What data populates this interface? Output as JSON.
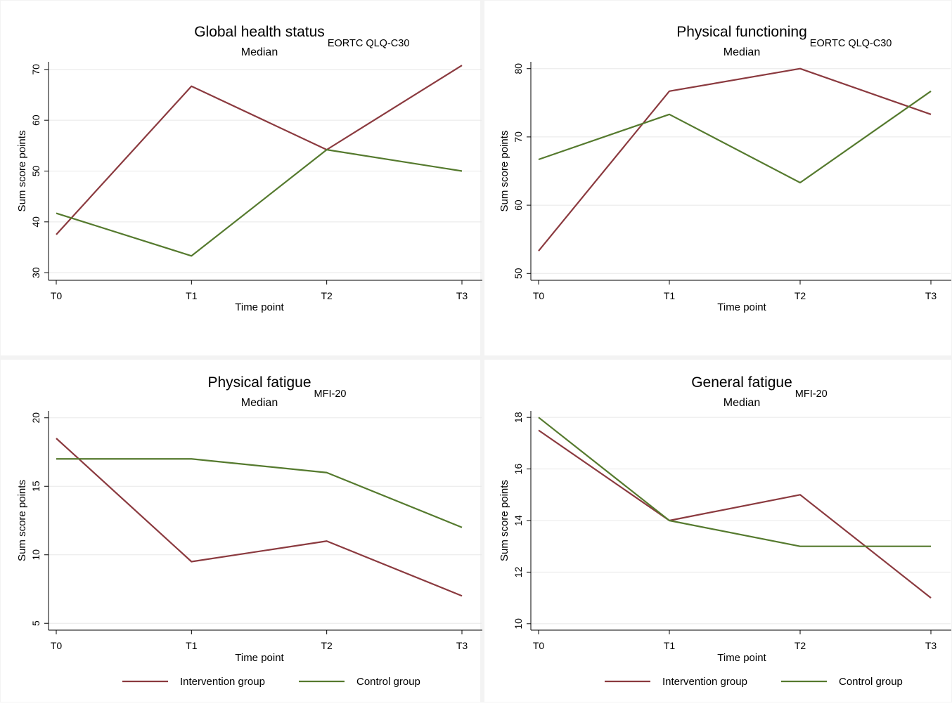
{
  "figure": {
    "legend": [
      {
        "label": "Intervention group",
        "color": "#8b3a3f"
      },
      {
        "label": "Control group",
        "color": "#557a2e"
      }
    ]
  },
  "chart_data": [
    {
      "type": "line",
      "title": "Global health status",
      "title_subscript": "EORTC QLQ-C30",
      "subtitle": "Median",
      "xlabel": "Time point",
      "ylabel": "Sum score points",
      "categories": [
        "T0",
        "T1",
        "T2",
        "T3"
      ],
      "ylim": [
        28.5,
        71.5
      ],
      "yticks": [
        30,
        40,
        50,
        60,
        70
      ],
      "series": [
        {
          "name": "Intervention group",
          "values": [
            37.5,
            66.7,
            54.2,
            70.8
          ]
        },
        {
          "name": "Control group",
          "values": [
            41.7,
            33.3,
            54.2,
            50.0
          ]
        }
      ],
      "legend": false
    },
    {
      "type": "line",
      "title": "Physical functioning",
      "title_subscript": "EORTC QLQ-C30",
      "subtitle": "Median",
      "xlabel": "Time point",
      "ylabel": "Sum score points",
      "categories": [
        "T0",
        "T1",
        "T2",
        "T3"
      ],
      "ylim": [
        49.0,
        81.0
      ],
      "yticks": [
        50,
        60,
        70,
        80
      ],
      "series": [
        {
          "name": "Intervention group",
          "values": [
            53.3,
            76.7,
            80.0,
            73.3
          ]
        },
        {
          "name": "Control group",
          "values": [
            66.7,
            73.3,
            63.3,
            76.7
          ]
        }
      ],
      "legend": false
    },
    {
      "type": "line",
      "title": "Physical fatigue",
      "title_subscript": "MFI-20",
      "subtitle": "Median",
      "xlabel": "Time point",
      "ylabel": "Sum score points",
      "categories": [
        "T0",
        "T1",
        "T2",
        "T3"
      ],
      "ylim": [
        4.5,
        20.5
      ],
      "yticks": [
        5,
        10,
        15,
        20
      ],
      "series": [
        {
          "name": "Intervention group",
          "values": [
            18.5,
            9.5,
            11.0,
            7.0
          ]
        },
        {
          "name": "Control group",
          "values": [
            17.0,
            17.0,
            16.0,
            12.0
          ]
        }
      ],
      "legend": true
    },
    {
      "type": "line",
      "title": "General fatigue",
      "title_subscript": "MFI-20",
      "subtitle": "Median",
      "xlabel": "Time point",
      "ylabel": "Sum score points",
      "categories": [
        "T0",
        "T1",
        "T2",
        "T3"
      ],
      "ylim": [
        9.75,
        18.25
      ],
      "yticks": [
        10,
        12,
        14,
        16,
        18
      ],
      "series": [
        {
          "name": "Intervention group",
          "values": [
            17.5,
            14.0,
            15.0,
            11.0
          ]
        },
        {
          "name": "Control group",
          "values": [
            18.0,
            14.0,
            13.0,
            13.0
          ]
        }
      ],
      "legend": true
    }
  ]
}
